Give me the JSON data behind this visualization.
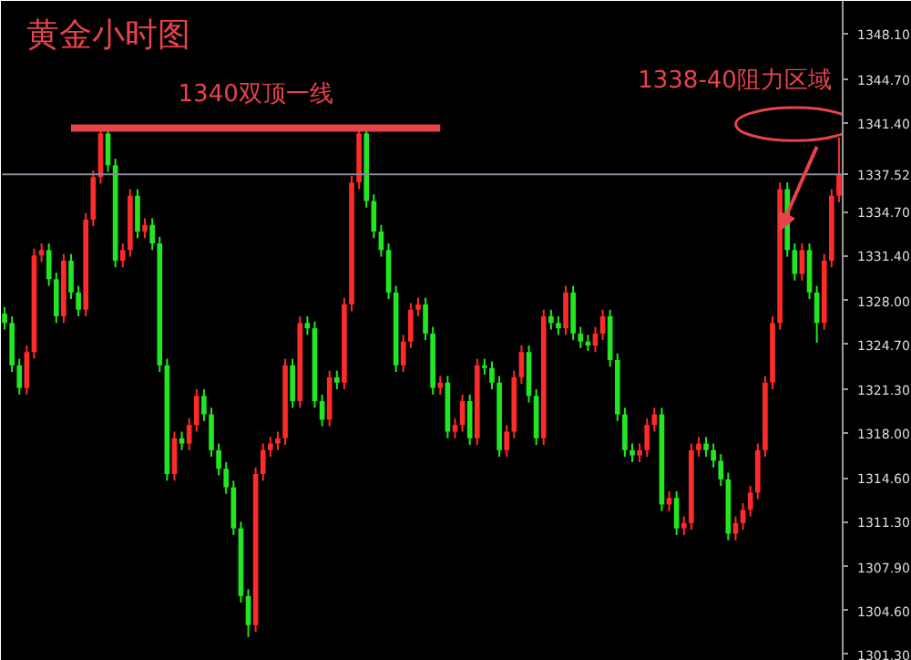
{
  "chart_data": {
    "type": "candlestick",
    "title": "黄金小时图",
    "categories": [
      null,
      null,
      null,
      null,
      null,
      null,
      null,
      null,
      null,
      null,
      null,
      null,
      null,
      null,
      null,
      null,
      null,
      null,
      null,
      null,
      null,
      null,
      null,
      null,
      null,
      null,
      null,
      null,
      null,
      null,
      null,
      null,
      null,
      null,
      null,
      null,
      null,
      null,
      null,
      null,
      null,
      null,
      null,
      null,
      null,
      null,
      null,
      null,
      null,
      null,
      null,
      null,
      null,
      null,
      null,
      null,
      null,
      null,
      null,
      null,
      null,
      null,
      null,
      null,
      null,
      null,
      null,
      null,
      null,
      null,
      null,
      null,
      null,
      null,
      null,
      null,
      null,
      null,
      null,
      null,
      null,
      null,
      null,
      null,
      null,
      null,
      null,
      null,
      null,
      null,
      null,
      null,
      null,
      null,
      null,
      null,
      null,
      null,
      null,
      null,
      null,
      null,
      null,
      null,
      null,
      null,
      null,
      null,
      null,
      null,
      null,
      null,
      null,
      null
    ],
    "ohlc": [
      [
        1327.0,
        1327.5,
        1325.8,
        1326.3
      ],
      [
        1326.3,
        1326.8,
        1322.6,
        1323.1
      ],
      [
        1323.1,
        1323.6,
        1320.9,
        1321.4
      ],
      [
        1321.4,
        1324.6,
        1320.9,
        1324.1
      ],
      [
        1324.1,
        1331.9,
        1323.6,
        1331.4
      ],
      [
        1331.4,
        1332.3,
        1330.9,
        1331.8
      ],
      [
        1331.8,
        1332.3,
        1329.1,
        1329.6
      ],
      [
        1329.6,
        1330.1,
        1326.3,
        1326.8
      ],
      [
        1326.8,
        1331.5,
        1326.3,
        1331.0
      ],
      [
        1331.0,
        1331.5,
        1328.1,
        1328.6
      ],
      [
        1328.6,
        1329.1,
        1326.8,
        1327.3
      ],
      [
        1327.3,
        1334.6,
        1326.8,
        1334.1
      ],
      [
        1334.1,
        1337.8,
        1333.6,
        1337.3
      ],
      [
        1337.3,
        1341.0,
        1336.8,
        1340.6
      ],
      [
        1340.6,
        1341.0,
        1337.7,
        1338.2
      ],
      [
        1338.2,
        1338.7,
        1330.5,
        1331.0
      ],
      [
        1331.0,
        1332.3,
        1330.5,
        1331.8
      ],
      [
        1331.8,
        1336.4,
        1331.3,
        1335.9
      ],
      [
        1335.9,
        1336.4,
        1332.7,
        1333.2
      ],
      [
        1333.2,
        1334.2,
        1332.7,
        1333.7
      ],
      [
        1333.7,
        1334.2,
        1331.8,
        1332.3
      ],
      [
        1332.3,
        1332.8,
        1322.6,
        1323.1
      ],
      [
        1323.1,
        1323.6,
        1314.4,
        1314.9
      ],
      [
        1314.9,
        1318.1,
        1314.4,
        1317.6
      ],
      [
        1317.6,
        1318.1,
        1316.7,
        1317.2
      ],
      [
        1317.2,
        1319.1,
        1316.7,
        1318.6
      ],
      [
        1318.6,
        1321.3,
        1318.1,
        1320.8
      ],
      [
        1320.8,
        1321.3,
        1318.9,
        1319.4
      ],
      [
        1319.4,
        1319.9,
        1316.2,
        1316.7
      ],
      [
        1316.7,
        1317.2,
        1314.8,
        1315.3
      ],
      [
        1315.3,
        1315.8,
        1313.4,
        1313.9
      ],
      [
        1313.9,
        1314.4,
        1310.3,
        1310.8
      ],
      [
        1310.8,
        1311.3,
        1305.2,
        1305.7
      ],
      [
        1305.7,
        1306.2,
        1302.6,
        1303.5
      ],
      [
        1303.5,
        1315.4,
        1303.0,
        1314.9
      ],
      [
        1314.9,
        1317.2,
        1314.4,
        1316.7
      ],
      [
        1316.7,
        1317.7,
        1316.2,
        1317.2
      ],
      [
        1317.2,
        1318.1,
        1316.7,
        1317.6
      ],
      [
        1317.6,
        1323.6,
        1317.1,
        1323.1
      ],
      [
        1323.1,
        1323.6,
        1319.9,
        1320.4
      ],
      [
        1320.4,
        1326.8,
        1319.9,
        1326.3
      ],
      [
        1326.3,
        1326.8,
        1325.4,
        1325.9
      ],
      [
        1325.9,
        1326.4,
        1319.9,
        1320.4
      ],
      [
        1320.4,
        1320.9,
        1318.5,
        1319.0
      ],
      [
        1319.0,
        1322.7,
        1318.5,
        1322.2
      ],
      [
        1322.2,
        1322.7,
        1321.3,
        1321.8
      ],
      [
        1321.8,
        1328.2,
        1321.3,
        1327.7
      ],
      [
        1327.7,
        1337.4,
        1327.2,
        1336.9
      ],
      [
        1336.9,
        1340.9,
        1336.4,
        1340.6
      ],
      [
        1340.6,
        1340.9,
        1335.0,
        1335.5
      ],
      [
        1335.5,
        1336.0,
        1332.7,
        1333.2
      ],
      [
        1333.2,
        1333.7,
        1331.3,
        1331.8
      ],
      [
        1331.8,
        1332.3,
        1328.1,
        1328.6
      ],
      [
        1328.6,
        1329.1,
        1322.6,
        1323.1
      ],
      [
        1323.1,
        1325.4,
        1322.6,
        1324.9
      ],
      [
        1324.9,
        1327.8,
        1324.4,
        1327.3
      ],
      [
        1327.3,
        1328.2,
        1326.8,
        1327.7
      ],
      [
        1327.7,
        1328.2,
        1325.0,
        1325.5
      ],
      [
        1325.5,
        1326.0,
        1320.9,
        1321.4
      ],
      [
        1321.4,
        1322.3,
        1320.9,
        1321.8
      ],
      [
        1321.8,
        1322.3,
        1317.6,
        1318.1
      ],
      [
        1318.1,
        1319.1,
        1317.6,
        1318.6
      ],
      [
        1318.6,
        1320.9,
        1318.1,
        1320.4
      ],
      [
        1320.4,
        1320.9,
        1317.1,
        1317.6
      ],
      [
        1317.6,
        1323.6,
        1317.1,
        1323.1
      ],
      [
        1323.1,
        1323.6,
        1322.4,
        1322.9
      ],
      [
        1322.9,
        1323.4,
        1321.3,
        1321.8
      ],
      [
        1321.8,
        1322.3,
        1316.2,
        1316.7
      ],
      [
        1316.7,
        1318.6,
        1316.2,
        1318.1
      ],
      [
        1318.1,
        1322.7,
        1317.6,
        1322.2
      ],
      [
        1322.2,
        1324.6,
        1321.7,
        1324.1
      ],
      [
        1324.1,
        1324.6,
        1320.3,
        1320.8
      ],
      [
        1320.8,
        1321.3,
        1317.1,
        1317.6
      ],
      [
        1317.6,
        1327.3,
        1317.1,
        1326.8
      ],
      [
        1326.8,
        1327.3,
        1325.8,
        1326.3
      ],
      [
        1326.3,
        1326.8,
        1325.4,
        1325.9
      ],
      [
        1325.9,
        1329.1,
        1325.4,
        1328.6
      ],
      [
        1328.6,
        1329.1,
        1325.0,
        1325.5
      ],
      [
        1325.5,
        1326.0,
        1324.4,
        1324.9
      ],
      [
        1324.9,
        1325.4,
        1324.2,
        1324.6
      ],
      [
        1324.6,
        1326.0,
        1324.1,
        1325.5
      ],
      [
        1325.5,
        1327.3,
        1325.0,
        1326.8
      ],
      [
        1326.8,
        1327.3,
        1323.0,
        1323.5
      ],
      [
        1323.5,
        1324.0,
        1318.9,
        1319.4
      ],
      [
        1319.4,
        1319.9,
        1316.2,
        1316.7
      ],
      [
        1316.7,
        1317.2,
        1315.8,
        1316.3
      ],
      [
        1316.3,
        1317.2,
        1315.8,
        1316.7
      ],
      [
        1316.7,
        1319.1,
        1316.2,
        1318.6
      ],
      [
        1318.6,
        1319.9,
        1318.1,
        1319.4
      ],
      [
        1319.4,
        1319.9,
        1312.1,
        1312.6
      ],
      [
        1312.6,
        1313.6,
        1312.1,
        1313.1
      ],
      [
        1313.1,
        1313.6,
        1310.3,
        1310.8
      ],
      [
        1310.8,
        1311.7,
        1310.3,
        1311.2
      ],
      [
        1311.2,
        1317.2,
        1310.7,
        1316.7
      ],
      [
        1316.7,
        1317.7,
        1316.2,
        1317.2
      ],
      [
        1317.2,
        1317.7,
        1316.2,
        1316.7
      ],
      [
        1316.7,
        1317.2,
        1315.4,
        1315.9
      ],
      [
        1315.9,
        1316.4,
        1314.0,
        1314.5
      ],
      [
        1314.5,
        1315.0,
        1309.9,
        1310.4
      ],
      [
        1310.4,
        1311.7,
        1309.9,
        1311.2
      ],
      [
        1311.2,
        1312.7,
        1310.7,
        1312.2
      ],
      [
        1312.2,
        1314.0,
        1311.7,
        1313.5
      ],
      [
        1313.5,
        1317.2,
        1313.0,
        1316.7
      ],
      [
        1316.7,
        1322.3,
        1316.2,
        1321.8
      ],
      [
        1321.8,
        1326.8,
        1321.3,
        1326.3
      ],
      [
        1326.3,
        1336.9,
        1325.8,
        1336.4
      ],
      [
        1336.4,
        1336.9,
        1331.3,
        1331.8
      ],
      [
        1331.8,
        1332.3,
        1329.5,
        1330.0
      ],
      [
        1330.0,
        1332.3,
        1329.5,
        1331.8
      ],
      [
        1331.8,
        1332.3,
        1328.1,
        1328.6
      ],
      [
        1328.6,
        1329.1,
        1324.8,
        1326.3
      ],
      [
        1326.3,
        1331.5,
        1325.8,
        1331.0
      ],
      [
        1331.0,
        1336.4,
        1330.5,
        1335.9
      ],
      [
        1335.9,
        1340.3,
        1335.4,
        1337.5
      ]
    ],
    "colors": [
      "#22e622",
      "#22e622",
      "#22e622",
      "#ff2a2a",
      "#ff2a2a",
      "#ff2a2a",
      "#22e622",
      "#22e622",
      "#ff2a2a",
      "#22e622",
      "#22e622",
      "#ff2a2a",
      "#ff2a2a",
      "#ff2a2a",
      "#22e622",
      "#22e622",
      "#ff2a2a",
      "#ff2a2a",
      "#22e622",
      "#ff2a2a",
      "#22e622",
      "#22e622",
      "#22e622",
      "#ff2a2a",
      "#22e622",
      "#ff2a2a",
      "#ff2a2a",
      "#22e622",
      "#22e622",
      "#22e622",
      "#22e622",
      "#22e622",
      "#22e622",
      "#22e622",
      "#ff2a2a",
      "#ff2a2a",
      "#ff2a2a",
      "#ff2a2a",
      "#ff2a2a",
      "#22e622",
      "#ff2a2a",
      "#22e622",
      "#22e622",
      "#22e622",
      "#ff2a2a",
      "#22e622",
      "#ff2a2a",
      "#ff2a2a",
      "#ff2a2a",
      "#22e622",
      "#22e622",
      "#22e622",
      "#22e622",
      "#22e622",
      "#ff2a2a",
      "#ff2a2a",
      "#ff2a2a",
      "#22e622",
      "#22e622",
      "#ff2a2a",
      "#22e622",
      "#ff2a2a",
      "#ff2a2a",
      "#22e622",
      "#ff2a2a",
      "#22e622",
      "#22e622",
      "#22e622",
      "#ff2a2a",
      "#ff2a2a",
      "#ff2a2a",
      "#22e622",
      "#22e622",
      "#ff2a2a",
      "#22e622",
      "#22e622",
      "#ff2a2a",
      "#22e622",
      "#22e622",
      "#22e622",
      "#ff2a2a",
      "#ff2a2a",
      "#22e622",
      "#22e622",
      "#22e622",
      "#22e622",
      "#ff2a2a",
      "#ff2a2a",
      "#ff2a2a",
      "#22e622",
      "#ff2a2a",
      "#22e622",
      "#ff2a2a",
      "#ff2a2a",
      "#ff2a2a",
      "#22e622",
      "#22e622",
      "#22e622",
      "#22e622",
      "#ff2a2a",
      "#ff2a2a",
      "#ff2a2a",
      "#ff2a2a",
      "#ff2a2a",
      "#ff2a2a",
      "#ff2a2a",
      "#22e622",
      "#22e622",
      "#ff2a2a",
      "#22e622",
      "#22e622",
      "#ff2a2a",
      "#ff2a2a",
      "#ff2a2a"
    ],
    "ylim": [
      1300.8,
      1350.6
    ],
    "yticks": [
      {
        "value": 1301.3,
        "label": "1301.30"
      },
      {
        "value": 1304.6,
        "label": "1304.60"
      },
      {
        "value": 1307.9,
        "label": "1307.90"
      },
      {
        "value": 1311.3,
        "label": "1311.30"
      },
      {
        "value": 1314.6,
        "label": "1314.60"
      },
      {
        "value": 1318.0,
        "label": "1318.00"
      },
      {
        "value": 1321.3,
        "label": "1321.30"
      },
      {
        "value": 1324.7,
        "label": "1324.70"
      },
      {
        "value": 1328.0,
        "label": "1328.00"
      },
      {
        "value": 1331.4,
        "label": "1331.40"
      },
      {
        "value": 1334.7,
        "label": "1334.70"
      },
      {
        "value": 1341.4,
        "label": "1341.40"
      },
      {
        "value": 1344.7,
        "label": "1344.70"
      },
      {
        "value": 1348.1,
        "label": "1348.10"
      }
    ],
    "ref_lines": [
      {
        "axis": "y",
        "value": 1337.52,
        "label": "1337.52",
        "color": "#8a8a99"
      },
      {
        "axis": "y",
        "value": 1341.0,
        "label": "1340双顶一线",
        "color": "#e8434a"
      }
    ],
    "annotations": [
      "1338-40阻力区域"
    ],
    "grid": false
  }
}
